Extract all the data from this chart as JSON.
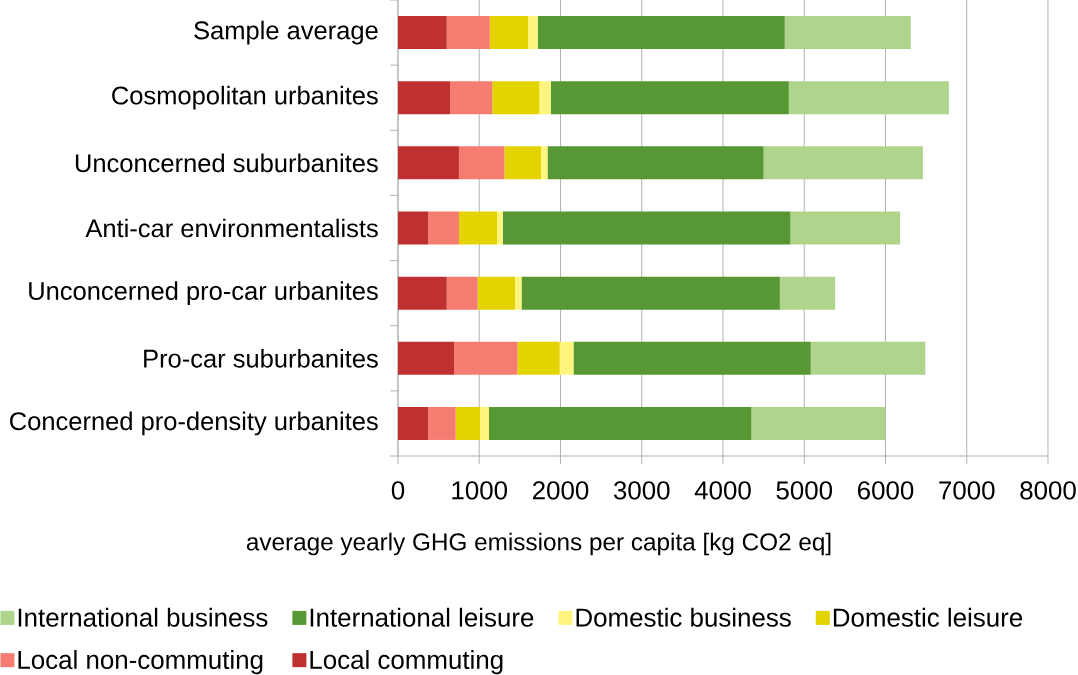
{
  "chart_data": {
    "type": "bar",
    "orientation": "horizontal",
    "stacked": true,
    "categories": [
      "Sample average",
      "Cosmopolitan urbanites",
      "Unconcerned suburbanites",
      "Anti-car environmentalists",
      "Unconcerned pro-car urbanites",
      "Pro-car suburbanites",
      "Concerned pro-density urbanites"
    ],
    "xlabel": "average yearly GHG emissions per capita [kg CO2 eq]",
    "xlim": [
      0,
      8000
    ],
    "xticks": [
      0,
      1000,
      2000,
      3000,
      4000,
      5000,
      6000,
      7000,
      8000
    ],
    "grid": "x",
    "legend": "bottom",
    "series": [
      {
        "name": "Local commuting",
        "color": "#bf3030",
        "values": [
          600,
          640,
          750,
          370,
          600,
          690,
          370
        ]
      },
      {
        "name": "Local non-commuting",
        "color": "#f47c70",
        "values": [
          530,
          520,
          560,
          380,
          380,
          780,
          340
        ]
      },
      {
        "name": "Domestic leisure",
        "color": "#e3d400",
        "values": [
          470,
          580,
          450,
          470,
          460,
          520,
          300
        ]
      },
      {
        "name": "Domestic business",
        "color": "#fff57e",
        "values": [
          120,
          140,
          80,
          70,
          80,
          170,
          110
        ]
      },
      {
        "name": "International leisure",
        "color": "#589834",
        "values": [
          3040,
          2930,
          2660,
          3540,
          3180,
          2920,
          3230
        ]
      },
      {
        "name": "International business",
        "color": "#afd48b",
        "values": [
          1550,
          1970,
          1960,
          1350,
          680,
          1410,
          1650
        ]
      }
    ]
  }
}
